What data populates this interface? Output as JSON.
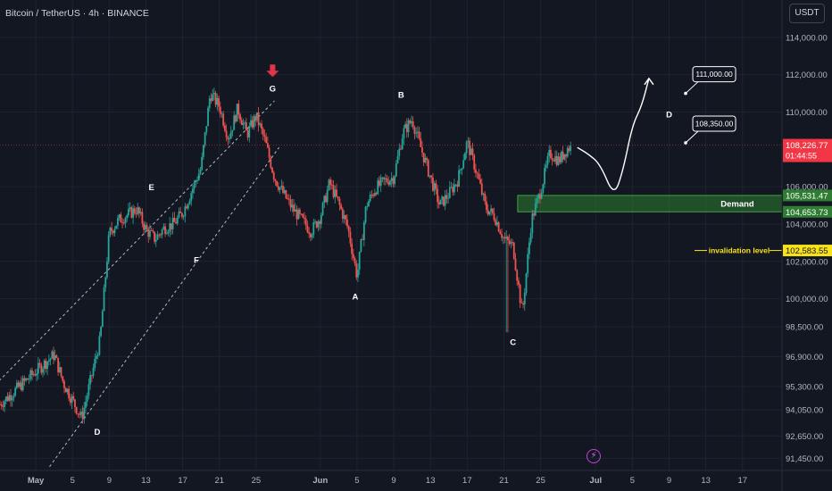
{
  "header": {
    "symbol_title": "Bitcoin / TetherUS · 4h · BINANCE"
  },
  "price_axis": {
    "currency": "USDT"
  },
  "colors": {
    "bg": "#131722",
    "up": "#26a69a",
    "down": "#ef5350",
    "grid": "#1f2330",
    "demand": "#2e7d32",
    "demand_label": "#43a047",
    "invalid": "#f7e317",
    "current": "#f23645",
    "arrow": "#e0344a"
  },
  "chart_data": {
    "type": "candlestick",
    "title": "Bitcoin / TetherUS · 4h · BINANCE",
    "ylim": [
      90800,
      116000
    ],
    "y_ticks": [
      "114,000.00",
      "112,000.00",
      "110,000.00",
      "106,000.00",
      "104,000.00",
      "102,000.00",
      "100,000.00",
      "98,500.00",
      "96,900.00",
      "95,300.00",
      "94,050.00",
      "92,650.00",
      "91,450.00"
    ],
    "y_tick_values": [
      114000,
      112000,
      110000,
      106000,
      104000,
      102000,
      100000,
      98500,
      96900,
      95300,
      94050,
      92650,
      91450
    ],
    "x_ticks": [
      "May",
      "5",
      "9",
      "13",
      "17",
      "21",
      "25",
      "Jun",
      "5",
      "9",
      "13",
      "17",
      "21",
      "25",
      "Jul",
      "5",
      "9",
      "13",
      "17"
    ],
    "x_tick_days": [
      1,
      5,
      9,
      13,
      17,
      21,
      25,
      32,
      36,
      40,
      44,
      48,
      52,
      56,
      62,
      66,
      70,
      74,
      78
    ],
    "x_range_days": [
      -2.9,
      82.3
    ],
    "close_path_days": [
      -3,
      3,
      4,
      6,
      8,
      9,
      10,
      12,
      13,
      14,
      15,
      16,
      17,
      18,
      19,
      20,
      21,
      22,
      23,
      24,
      25,
      26,
      27,
      28,
      29,
      30,
      31,
      32,
      33,
      34,
      35,
      36,
      37,
      38,
      39,
      40,
      41,
      42,
      43,
      44,
      45,
      46,
      47,
      48,
      49,
      50,
      51,
      52,
      53,
      54,
      55,
      56,
      57,
      58,
      59
    ],
    "close_path_prices": [
      94300,
      97000,
      95500,
      93600,
      97800,
      103500,
      104200,
      104800,
      103700,
      103200,
      103800,
      104000,
      104600,
      105800,
      107000,
      111000,
      110300,
      108600,
      110200,
      108800,
      109800,
      108400,
      106500,
      105600,
      104800,
      104200,
      103600,
      104400,
      106200,
      105100,
      103800,
      101200,
      105000,
      105900,
      106300,
      106500,
      108900,
      109600,
      108000,
      106500,
      105000,
      105600,
      106400,
      108400,
      106800,
      104900,
      104400,
      103200,
      102800,
      99200,
      104200,
      105800,
      107800,
      107400,
      108100
    ],
    "last_day": 59.3,
    "wick_low": {
      "day": 52.3,
      "price": 98200
    },
    "wave_labels": [
      {
        "label": "D",
        "day": 7.7,
        "price": 92900
      },
      {
        "label": "E",
        "day": 13.6,
        "price": 106000
      },
      {
        "label": "F",
        "day": 18.5,
        "price": 102100
      },
      {
        "label": "G",
        "day": 26.8,
        "price": 111300
      },
      {
        "label": "A",
        "day": 35.8,
        "price": 100150
      },
      {
        "label": "B",
        "day": 40.8,
        "price": 110950
      },
      {
        "label": "C",
        "day": 53.0,
        "price": 97700
      },
      {
        "label": "D",
        "day": 70.0,
        "price": 109900
      }
    ],
    "channel_lower": {
      "from": {
        "day": 2.5,
        "price": 91000
      },
      "to": {
        "day": 27.5,
        "price": 108100
      }
    },
    "channel_upper": {
      "from": {
        "day": -3,
        "price": 95600
      },
      "to": {
        "day": 27.0,
        "price": 110600
      }
    },
    "projection_path": [
      {
        "day": 60.0,
        "price": 108100
      },
      {
        "day": 61.2,
        "price": 107750
      },
      {
        "day": 62.5,
        "price": 107200
      },
      {
        "day": 64.0,
        "price": 105450
      },
      {
        "day": 65.0,
        "price": 106900
      },
      {
        "day": 66.0,
        "price": 109300
      },
      {
        "day": 67.0,
        "price": 110300
      },
      {
        "day": 67.8,
        "price": 111800
      }
    ],
    "demand_zone": {
      "from_day": 53.5,
      "top": 105531.47,
      "bottom": 104653.73,
      "label": "Demand",
      "top_label": "105,531.47",
      "bottom_label": "104,653.73"
    },
    "invalidation": {
      "price": 102583.55,
      "label": "invalidation level",
      "value_label": "102,583.55"
    },
    "targets": [
      {
        "label": "111,000.00",
        "price": 111000,
        "day": 71.8
      },
      {
        "label": "108,350.00",
        "price": 108350,
        "day": 71.8
      }
    ],
    "current_price": {
      "label": "108,226.77",
      "countdown": "01:44:55",
      "price": 108226.77
    }
  }
}
